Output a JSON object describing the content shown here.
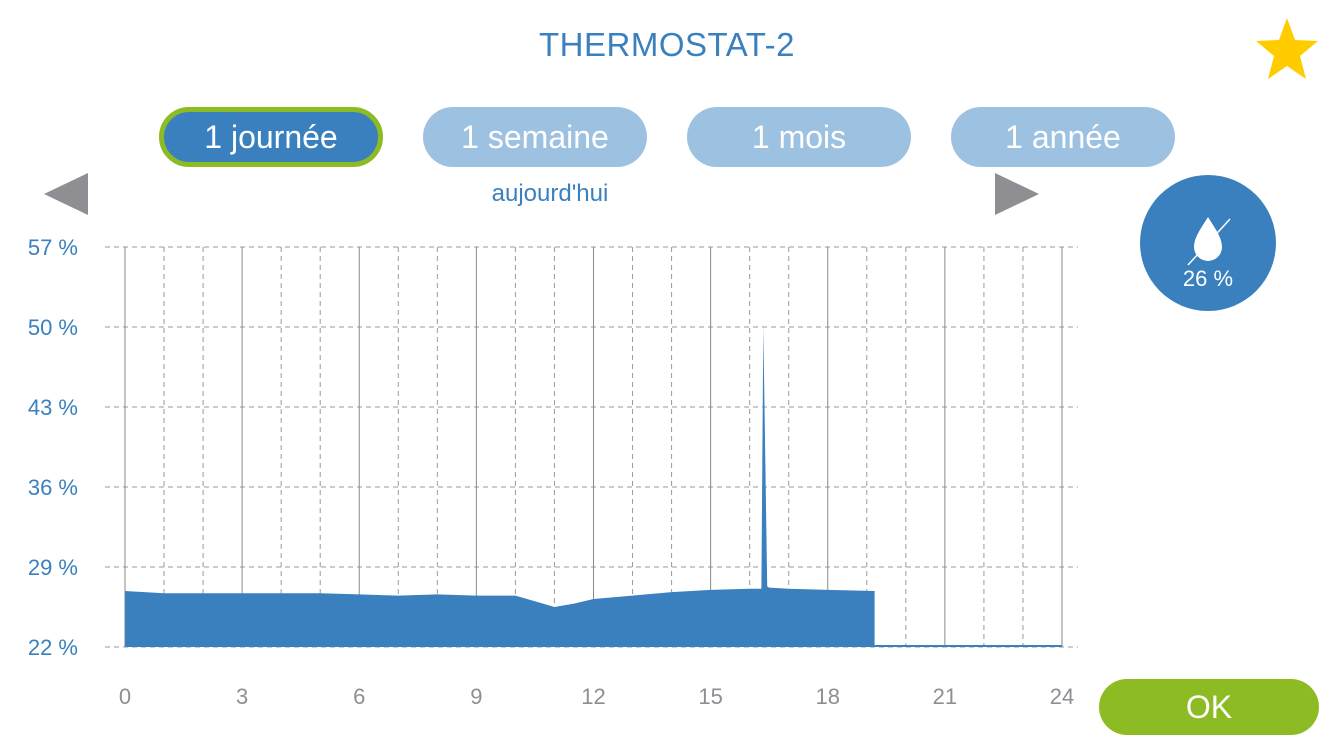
{
  "header": {
    "title": "THERMOSTAT-2",
    "favorite_icon": "star-icon",
    "favorite_color": "#FFCC00"
  },
  "tabs": [
    {
      "label": "1 journée",
      "active": true
    },
    {
      "label": "1 semaine",
      "active": false
    },
    {
      "label": "1 mois",
      "active": false
    },
    {
      "label": "1 année",
      "active": false
    }
  ],
  "navigation": {
    "period_label": "aujourd'hui",
    "prev_icon": "triangle-left-icon",
    "next_icon": "triangle-right-icon"
  },
  "humidity_badge": {
    "icon": "water-drop-icon",
    "value": "26 %"
  },
  "ok_button": {
    "label": "OK"
  },
  "colors": {
    "primary": "#3A80BF",
    "tab_inactive": "#9DC1E0",
    "accent_green": "#8DBB24",
    "arrow_gray": "#8E8E93"
  },
  "chart_data": {
    "type": "area",
    "x_tick_labels": [
      "0",
      "3",
      "6",
      "9",
      "12",
      "15",
      "18",
      "21",
      "24"
    ],
    "y_tick_labels": [
      "57 %",
      "50 %",
      "43 %",
      "36 %",
      "29 %",
      "22 %"
    ],
    "xlim": [
      0,
      24
    ],
    "ylim": [
      22,
      57
    ],
    "grid": true,
    "x": [
      0,
      0.5,
      1,
      2,
      3,
      4,
      5,
      6,
      7,
      8,
      9,
      10,
      10.5,
      11,
      11.5,
      12,
      13,
      14,
      15,
      16,
      16.3,
      16.35,
      16.45,
      16.5,
      17,
      18,
      19.2
    ],
    "values": [
      26.9,
      26.8,
      26.7,
      26.7,
      26.7,
      26.7,
      26.7,
      26.6,
      26.5,
      26.6,
      26.5,
      26.5,
      26.0,
      25.5,
      25.8,
      26.2,
      26.5,
      26.8,
      27.0,
      27.1,
      27.1,
      50.0,
      27.3,
      27.2,
      27.1,
      27.0,
      26.9
    ]
  }
}
